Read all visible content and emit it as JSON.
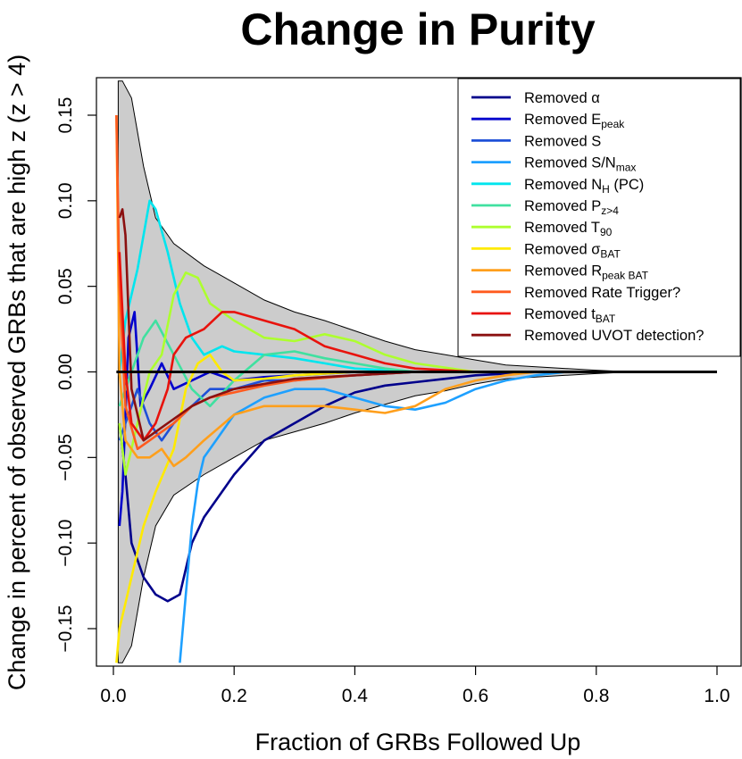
{
  "chart_data": {
    "type": "line",
    "title": "Change in Purity",
    "xlabel": "Fraction of GRBs Followed Up",
    "ylabel": "Change in percent of observed GRBs that are high z (z > 4)",
    "xlim": [
      0.0,
      1.0
    ],
    "ylim": [
      -0.17,
      0.17
    ],
    "xticks": [
      "0.0",
      "0.2",
      "0.4",
      "0.6",
      "0.8",
      "1.0"
    ],
    "yticks": [
      "-0.15",
      "-0.10",
      "-0.05",
      "0.00",
      "0.05",
      "0.10",
      "0.15"
    ],
    "xtick_values": [
      0.0,
      0.2,
      0.4,
      0.6,
      0.8,
      1.0
    ],
    "ytick_values": [
      -0.15,
      -0.1,
      -0.05,
      0.0,
      0.05,
      0.1,
      0.15
    ],
    "legend_position": "top-right",
    "grid": false,
    "band": {
      "color": "#cccccc",
      "upper": [
        [
          0.008,
          0.17
        ],
        [
          0.015,
          0.17
        ],
        [
          0.03,
          0.16
        ],
        [
          0.05,
          0.12
        ],
        [
          0.07,
          0.09
        ],
        [
          0.1,
          0.075
        ],
        [
          0.15,
          0.062
        ],
        [
          0.2,
          0.052
        ],
        [
          0.25,
          0.042
        ],
        [
          0.3,
          0.035
        ],
        [
          0.35,
          0.03
        ],
        [
          0.4,
          0.024
        ],
        [
          0.45,
          0.018
        ],
        [
          0.5,
          0.013
        ],
        [
          0.55,
          0.01
        ],
        [
          0.6,
          0.007
        ],
        [
          0.65,
          0.004
        ],
        [
          0.7,
          0.003
        ],
        [
          0.75,
          0.002
        ],
        [
          0.8,
          0.001
        ],
        [
          0.86,
          0.0
        ]
      ],
      "lower": [
        [
          0.008,
          -0.17
        ],
        [
          0.015,
          -0.17
        ],
        [
          0.03,
          -0.16
        ],
        [
          0.05,
          -0.12
        ],
        [
          0.07,
          -0.09
        ],
        [
          0.1,
          -0.072
        ],
        [
          0.15,
          -0.06
        ],
        [
          0.2,
          -0.05
        ],
        [
          0.25,
          -0.04
        ],
        [
          0.3,
          -0.035
        ],
        [
          0.35,
          -0.03
        ],
        [
          0.4,
          -0.024
        ],
        [
          0.45,
          -0.019
        ],
        [
          0.5,
          -0.014
        ],
        [
          0.55,
          -0.011
        ],
        [
          0.6,
          -0.007
        ],
        [
          0.65,
          -0.004
        ],
        [
          0.7,
          -0.003
        ],
        [
          0.75,
          -0.002
        ],
        [
          0.8,
          -0.001
        ],
        [
          0.86,
          0.0
        ]
      ]
    },
    "zero_line": 0.0,
    "series": [
      {
        "name": "Removed α",
        "label_main": "Removed α",
        "label_sub": "",
        "color": "#00008b",
        "points": [
          [
            0.01,
            -0.03
          ],
          [
            0.02,
            -0.06
          ],
          [
            0.03,
            -0.1
          ],
          [
            0.05,
            -0.12
          ],
          [
            0.07,
            -0.13
          ],
          [
            0.09,
            -0.134
          ],
          [
            0.11,
            -0.13
          ],
          [
            0.13,
            -0.1
          ],
          [
            0.15,
            -0.085
          ],
          [
            0.2,
            -0.06
          ],
          [
            0.25,
            -0.04
          ],
          [
            0.3,
            -0.03
          ],
          [
            0.35,
            -0.02
          ],
          [
            0.4,
            -0.012
          ],
          [
            0.45,
            -0.008
          ],
          [
            0.5,
            -0.006
          ],
          [
            0.55,
            -0.004
          ],
          [
            0.6,
            -0.002
          ],
          [
            0.65,
            -0.001
          ],
          [
            0.7,
            0.0
          ]
        ]
      },
      {
        "name": "Removed Epeak",
        "label_main": "Removed E",
        "label_sub": "peak",
        "color": "#0000cd",
        "points": [
          [
            0.01,
            -0.09
          ],
          [
            0.015,
            -0.07
          ],
          [
            0.025,
            0.02
          ],
          [
            0.035,
            0.035
          ],
          [
            0.045,
            -0.02
          ],
          [
            0.06,
            -0.01
          ],
          [
            0.08,
            0.005
          ],
          [
            0.1,
            -0.01
          ],
          [
            0.13,
            -0.005
          ],
          [
            0.16,
            0.0
          ],
          [
            0.2,
            -0.005
          ],
          [
            0.25,
            -0.003
          ],
          [
            0.3,
            -0.002
          ],
          [
            0.35,
            -0.001
          ],
          [
            0.4,
            0.0
          ],
          [
            0.5,
            0.0
          ],
          [
            0.6,
            0.0
          ],
          [
            0.7,
            0.0
          ]
        ]
      },
      {
        "name": "Removed S",
        "label_main": "Removed S",
        "label_sub": "",
        "color": "#1e50d8",
        "points": [
          [
            0.01,
            -0.04
          ],
          [
            0.02,
            -0.03
          ],
          [
            0.03,
            -0.02
          ],
          [
            0.04,
            -0.01
          ],
          [
            0.05,
            -0.02
          ],
          [
            0.06,
            -0.03
          ],
          [
            0.08,
            -0.04
          ],
          [
            0.1,
            -0.03
          ],
          [
            0.13,
            -0.02
          ],
          [
            0.16,
            -0.01
          ],
          [
            0.2,
            -0.01
          ],
          [
            0.25,
            -0.005
          ],
          [
            0.3,
            -0.005
          ],
          [
            0.35,
            -0.003
          ],
          [
            0.4,
            -0.002
          ],
          [
            0.5,
            0.0
          ],
          [
            0.6,
            0.0
          ],
          [
            0.7,
            0.0
          ]
        ]
      },
      {
        "name": "Removed S/Nmax",
        "label_main": "Removed S/N",
        "label_sub": "max",
        "color": "#1ea0ff",
        "points": [
          [
            0.11,
            -0.17
          ],
          [
            0.12,
            -0.13
          ],
          [
            0.13,
            -0.09
          ],
          [
            0.14,
            -0.065
          ],
          [
            0.15,
            -0.05
          ],
          [
            0.17,
            -0.04
          ],
          [
            0.2,
            -0.025
          ],
          [
            0.25,
            -0.015
          ],
          [
            0.3,
            -0.01
          ],
          [
            0.35,
            -0.01
          ],
          [
            0.4,
            -0.015
          ],
          [
            0.45,
            -0.02
          ],
          [
            0.5,
            -0.022
          ],
          [
            0.55,
            -0.018
          ],
          [
            0.6,
            -0.01
          ],
          [
            0.65,
            -0.005
          ],
          [
            0.7,
            -0.002
          ],
          [
            0.75,
            0.0
          ],
          [
            0.8,
            0.0
          ]
        ]
      },
      {
        "name": "Removed NH (PC)",
        "label_main": "Removed N",
        "label_sub": "H",
        "label_suffix": " (PC)",
        "color": "#00e5ee",
        "points": [
          [
            0.01,
            0.0
          ],
          [
            0.02,
            0.03
          ],
          [
            0.04,
            0.06
          ],
          [
            0.06,
            0.1
          ],
          [
            0.07,
            0.095
          ],
          [
            0.09,
            0.07
          ],
          [
            0.11,
            0.04
          ],
          [
            0.13,
            0.02
          ],
          [
            0.15,
            0.01
          ],
          [
            0.18,
            0.015
          ],
          [
            0.2,
            0.012
          ],
          [
            0.25,
            0.01
          ],
          [
            0.3,
            0.008
          ],
          [
            0.35,
            0.005
          ],
          [
            0.4,
            0.002
          ],
          [
            0.5,
            0.0
          ],
          [
            0.6,
            0.0
          ],
          [
            0.7,
            0.0
          ]
        ]
      },
      {
        "name": "Removed Pz>4",
        "label_main": "Removed P",
        "label_sub": "z>4",
        "color": "#40e0a0",
        "points": [
          [
            0.01,
            -0.02
          ],
          [
            0.03,
            0.0
          ],
          [
            0.05,
            0.02
          ],
          [
            0.07,
            0.03
          ],
          [
            0.1,
            0.01
          ],
          [
            0.13,
            -0.01
          ],
          [
            0.16,
            -0.02
          ],
          [
            0.2,
            -0.005
          ],
          [
            0.25,
            0.01
          ],
          [
            0.3,
            0.012
          ],
          [
            0.35,
            0.008
          ],
          [
            0.4,
            0.005
          ],
          [
            0.45,
            0.002
          ],
          [
            0.5,
            0.0
          ],
          [
            0.6,
            0.0
          ],
          [
            0.7,
            0.0
          ]
        ]
      },
      {
        "name": "Removed T90",
        "label_main": "Removed T",
        "label_sub": "90",
        "color": "#adff2f",
        "points": [
          [
            0.01,
            -0.03
          ],
          [
            0.02,
            -0.06
          ],
          [
            0.04,
            -0.03
          ],
          [
            0.06,
            0.0
          ],
          [
            0.08,
            0.01
          ],
          [
            0.1,
            0.045
          ],
          [
            0.12,
            0.058
          ],
          [
            0.14,
            0.055
          ],
          [
            0.16,
            0.04
          ],
          [
            0.2,
            0.03
          ],
          [
            0.25,
            0.02
          ],
          [
            0.3,
            0.018
          ],
          [
            0.35,
            0.022
          ],
          [
            0.4,
            0.018
          ],
          [
            0.45,
            0.01
          ],
          [
            0.5,
            0.005
          ],
          [
            0.6,
            0.0
          ],
          [
            0.7,
            0.0
          ]
        ]
      },
      {
        "name": "Removed σBAT",
        "label_main": "Removed σ",
        "label_sub": "BAT",
        "color": "#ffea00",
        "points": [
          [
            0.005,
            -0.17
          ],
          [
            0.01,
            -0.15
          ],
          [
            0.03,
            -0.12
          ],
          [
            0.05,
            -0.09
          ],
          [
            0.07,
            -0.07
          ],
          [
            0.1,
            -0.045
          ],
          [
            0.12,
            -0.01
          ],
          [
            0.14,
            0.005
          ],
          [
            0.16,
            0.01
          ],
          [
            0.18,
            0.0
          ],
          [
            0.2,
            -0.005
          ],
          [
            0.25,
            -0.004
          ],
          [
            0.3,
            -0.002
          ],
          [
            0.4,
            0.0
          ],
          [
            0.5,
            0.0
          ],
          [
            0.6,
            0.0
          ]
        ]
      },
      {
        "name": "Removed Rpeak BAT",
        "label_main": "Removed R",
        "label_sub": "peak BAT",
        "color": "#ff9f1c",
        "points": [
          [
            0.005,
            0.15
          ],
          [
            0.01,
            0.0
          ],
          [
            0.02,
            -0.04
          ],
          [
            0.04,
            -0.05
          ],
          [
            0.06,
            -0.05
          ],
          [
            0.08,
            -0.045
          ],
          [
            0.1,
            -0.055
          ],
          [
            0.12,
            -0.05
          ],
          [
            0.15,
            -0.04
          ],
          [
            0.2,
            -0.025
          ],
          [
            0.25,
            -0.02
          ],
          [
            0.3,
            -0.02
          ],
          [
            0.35,
            -0.02
          ],
          [
            0.4,
            -0.022
          ],
          [
            0.45,
            -0.024
          ],
          [
            0.5,
            -0.02
          ],
          [
            0.55,
            -0.01
          ],
          [
            0.6,
            -0.005
          ],
          [
            0.65,
            -0.002
          ],
          [
            0.7,
            0.0
          ],
          [
            0.8,
            0.0
          ]
        ]
      },
      {
        "name": "Removed Rate Trigger?",
        "label_main": "Removed Rate Trigger?",
        "label_sub": "",
        "color": "#ff5a1e",
        "points": [
          [
            0.005,
            0.15
          ],
          [
            0.01,
            0.05
          ],
          [
            0.02,
            -0.02
          ],
          [
            0.04,
            -0.045
          ],
          [
            0.06,
            -0.04
          ],
          [
            0.08,
            -0.035
          ],
          [
            0.1,
            -0.03
          ],
          [
            0.13,
            -0.02
          ],
          [
            0.16,
            -0.015
          ],
          [
            0.2,
            -0.012
          ],
          [
            0.25,
            -0.008
          ],
          [
            0.3,
            -0.005
          ],
          [
            0.4,
            -0.002
          ],
          [
            0.5,
            0.0
          ],
          [
            0.6,
            0.0
          ]
        ]
      },
      {
        "name": "Removed tBAT",
        "label_main": "Removed t",
        "label_sub": "BAT",
        "color": "#e8120c",
        "points": [
          [
            0.01,
            0.07
          ],
          [
            0.02,
            0.0
          ],
          [
            0.03,
            -0.03
          ],
          [
            0.05,
            -0.04
          ],
          [
            0.07,
            -0.03
          ],
          [
            0.09,
            -0.01
          ],
          [
            0.1,
            0.01
          ],
          [
            0.12,
            0.02
          ],
          [
            0.15,
            0.025
          ],
          [
            0.18,
            0.035
          ],
          [
            0.2,
            0.035
          ],
          [
            0.25,
            0.03
          ],
          [
            0.3,
            0.025
          ],
          [
            0.35,
            0.015
          ],
          [
            0.4,
            0.01
          ],
          [
            0.45,
            0.005
          ],
          [
            0.5,
            0.002
          ],
          [
            0.6,
            0.0
          ],
          [
            0.7,
            0.0
          ]
        ]
      },
      {
        "name": "Removed UVOT detection?",
        "label_main": "Removed UVOT detection?",
        "label_sub": "",
        "color": "#8b1010",
        "points": [
          [
            0.01,
            0.09
          ],
          [
            0.015,
            0.095
          ],
          [
            0.02,
            0.08
          ],
          [
            0.03,
            -0.01
          ],
          [
            0.05,
            -0.04
          ],
          [
            0.07,
            -0.035
          ],
          [
            0.09,
            -0.03
          ],
          [
            0.11,
            -0.025
          ],
          [
            0.13,
            -0.02
          ],
          [
            0.16,
            -0.015
          ],
          [
            0.2,
            -0.01
          ],
          [
            0.25,
            -0.007
          ],
          [
            0.3,
            -0.004
          ],
          [
            0.4,
            -0.002
          ],
          [
            0.5,
            0.0
          ],
          [
            0.6,
            0.0
          ]
        ]
      }
    ]
  }
}
